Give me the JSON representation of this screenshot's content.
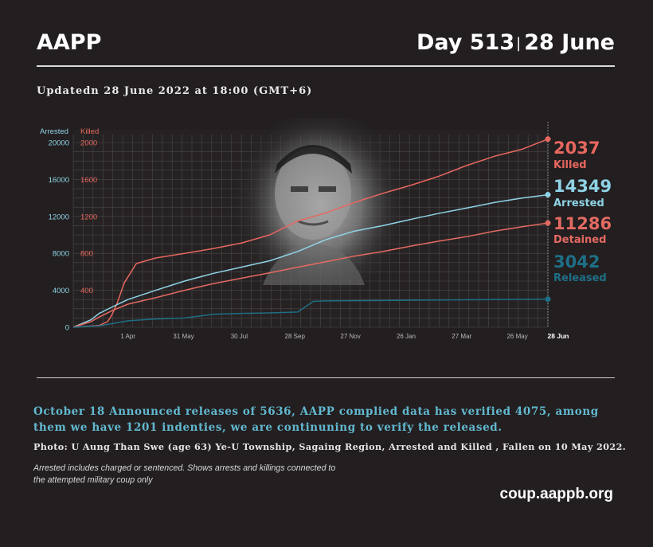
{
  "header": {
    "brand": "AAPP",
    "day": "Day 513",
    "separator": "|",
    "date": "28 June"
  },
  "updated": "Updatedn 28 June 2022 at 18:00 (GMT+6)",
  "colors": {
    "background": "#231f20",
    "killed": "#e8675f",
    "arrested": "#8fd3e6",
    "detained": "#e36a62",
    "released": "#1e6f86",
    "grid": "#4a4a4a"
  },
  "chart_data": {
    "type": "line",
    "axis_titles": {
      "left": "Arrested",
      "right": "Killed"
    },
    "y_left": {
      "ticks": [
        "20000",
        "16000",
        "12000",
        "8000",
        "4000",
        "0"
      ],
      "range": [
        0,
        20000
      ]
    },
    "y_right": {
      "ticks": [
        "2000",
        "1600",
        "1200",
        "800",
        "400"
      ],
      "range": [
        0,
        2000
      ]
    },
    "x_ticks": [
      "1 Apr",
      "31 May",
      "30 Jul",
      "28 Sep",
      "27 Nov",
      "26 Jan",
      "27 Mar",
      "26 May"
    ],
    "x_end_label": "28 Jun",
    "x_range": [
      "2021-02-01",
      "2022-06-28"
    ],
    "grid": true,
    "series": [
      {
        "name": "Killed",
        "axis": "right",
        "end_value": "2037",
        "label": "Killed",
        "points": [
          [
            "2021-02-01",
            0
          ],
          [
            "2021-03-01",
            20
          ],
          [
            "2021-03-10",
            60
          ],
          [
            "2021-03-14",
            120
          ],
          [
            "2021-03-20",
            250
          ],
          [
            "2021-03-28",
            480
          ],
          [
            "2021-04-10",
            690
          ],
          [
            "2021-05-01",
            750
          ],
          [
            "2021-06-01",
            800
          ],
          [
            "2021-07-01",
            850
          ],
          [
            "2021-08-01",
            910
          ],
          [
            "2021-09-01",
            1000
          ],
          [
            "2021-10-01",
            1150
          ],
          [
            "2021-11-01",
            1240
          ],
          [
            "2021-12-01",
            1350
          ],
          [
            "2022-01-01",
            1450
          ],
          [
            "2022-02-01",
            1540
          ],
          [
            "2022-03-01",
            1630
          ],
          [
            "2022-04-01",
            1750
          ],
          [
            "2022-05-01",
            1850
          ],
          [
            "2022-06-01",
            1930
          ],
          [
            "2022-06-28",
            2037
          ]
        ]
      },
      {
        "name": "Arrested",
        "axis": "left",
        "end_value": "14349",
        "label": "Arrested",
        "points": [
          [
            "2021-02-01",
            0
          ],
          [
            "2021-02-20",
            800
          ],
          [
            "2021-03-01",
            1500
          ],
          [
            "2021-03-15",
            2200
          ],
          [
            "2021-04-01",
            3000
          ],
          [
            "2021-05-01",
            4000
          ],
          [
            "2021-06-01",
            5000
          ],
          [
            "2021-07-01",
            5800
          ],
          [
            "2021-08-01",
            6500
          ],
          [
            "2021-09-01",
            7200
          ],
          [
            "2021-10-01",
            8200
          ],
          [
            "2021-11-01",
            9500
          ],
          [
            "2021-12-01",
            10400
          ],
          [
            "2022-01-01",
            11000
          ],
          [
            "2022-02-01",
            11700
          ],
          [
            "2022-03-01",
            12300
          ],
          [
            "2022-04-01",
            12900
          ],
          [
            "2022-05-01",
            13500
          ],
          [
            "2022-06-01",
            14000
          ],
          [
            "2022-06-28",
            14349
          ]
        ]
      },
      {
        "name": "Detained",
        "axis": "left",
        "end_value": "11286",
        "label": "Detained",
        "points": [
          [
            "2021-02-01",
            0
          ],
          [
            "2021-02-20",
            600
          ],
          [
            "2021-03-01",
            1100
          ],
          [
            "2021-03-15",
            1800
          ],
          [
            "2021-04-01",
            2500
          ],
          [
            "2021-05-01",
            3200
          ],
          [
            "2021-06-01",
            4000
          ],
          [
            "2021-07-01",
            4700
          ],
          [
            "2021-08-01",
            5300
          ],
          [
            "2021-09-01",
            5900
          ],
          [
            "2021-10-01",
            6500
          ],
          [
            "2021-11-01",
            7100
          ],
          [
            "2021-12-01",
            7700
          ],
          [
            "2022-01-01",
            8200
          ],
          [
            "2022-02-01",
            8800
          ],
          [
            "2022-03-01",
            9300
          ],
          [
            "2022-04-01",
            9800
          ],
          [
            "2022-05-01",
            10400
          ],
          [
            "2022-06-01",
            10900
          ],
          [
            "2022-06-28",
            11286
          ]
        ]
      },
      {
        "name": "Released",
        "axis": "left",
        "end_value": "3042",
        "label": "Released",
        "points": [
          [
            "2021-02-01",
            0
          ],
          [
            "2021-03-01",
            150
          ],
          [
            "2021-04-01",
            700
          ],
          [
            "2021-05-01",
            900
          ],
          [
            "2021-06-01",
            1000
          ],
          [
            "2021-07-01",
            1400
          ],
          [
            "2021-08-01",
            1500
          ],
          [
            "2021-09-01",
            1550
          ],
          [
            "2021-10-01",
            1650
          ],
          [
            "2021-10-18",
            2800
          ],
          [
            "2021-11-01",
            2850
          ],
          [
            "2022-01-01",
            2900
          ],
          [
            "2022-03-01",
            2950
          ],
          [
            "2022-05-01",
            3000
          ],
          [
            "2022-06-28",
            3042
          ]
        ]
      }
    ]
  },
  "announcement": "October 18 Announced releases of 5636, AAPP complied data has verified 4075, among them we have 1201 indenties, we are continuning to verify the released.",
  "photo_caption": "Photo:  U Aung Than Swe (age 63) Ye-U Township, Sagaing Region, Arrested and Killed , Fallen on 10 May 2022.",
  "note": "Arrested includes charged or sentenced. Shows arrests and killings connected to the attempted military coup only",
  "site": "coup.aappb.org"
}
